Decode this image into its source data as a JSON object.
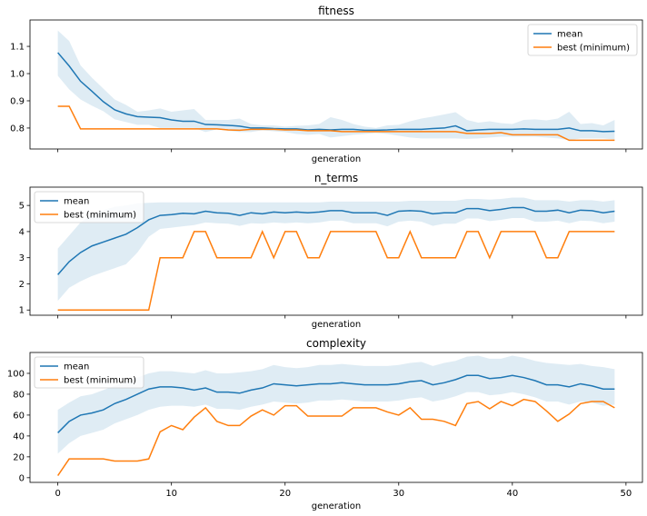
{
  "chart_data": [
    {
      "type": "line",
      "title": "fitness",
      "xlabel": "generation",
      "ylabel": "",
      "xlim": [
        -2.45,
        51.45
      ],
      "ylim": [
        0.723,
        1.197
      ],
      "yticks": [
        0.8,
        0.9,
        1.0,
        1.1
      ],
      "ytick_labels": [
        "0.8",
        "0.9",
        "1.0",
        "1.1"
      ],
      "xticks": [
        0,
        10,
        20,
        30,
        40,
        50
      ],
      "show_xtick_labels": false,
      "legend": "upper right",
      "series": [
        {
          "name": "mean",
          "color": "#1f77b4",
          "x": [
            0,
            1,
            2,
            3,
            4,
            5,
            6,
            7,
            8,
            9,
            10,
            11,
            12,
            13,
            14,
            15,
            16,
            17,
            18,
            19,
            20,
            21,
            22,
            23,
            24,
            25,
            26,
            27,
            28,
            29,
            30,
            31,
            32,
            33,
            34,
            35,
            36,
            37,
            38,
            39,
            40,
            41,
            42,
            43,
            44,
            45,
            46,
            47,
            48,
            49
          ],
          "y": [
            1.077,
            1.028,
            0.972,
            0.935,
            0.897,
            0.867,
            0.852,
            0.842,
            0.84,
            0.838,
            0.83,
            0.825,
            0.825,
            0.813,
            0.812,
            0.81,
            0.807,
            0.8,
            0.8,
            0.798,
            0.797,
            0.797,
            0.793,
            0.795,
            0.793,
            0.795,
            0.795,
            0.792,
            0.792,
            0.793,
            0.795,
            0.795,
            0.795,
            0.798,
            0.8,
            0.808,
            0.79,
            0.793,
            0.795,
            0.795,
            0.795,
            0.797,
            0.795,
            0.795,
            0.795,
            0.8,
            0.79,
            0.79,
            0.787,
            0.788
          ],
          "band_upper": [
            1.158,
            1.12,
            1.03,
            0.985,
            0.945,
            0.905,
            0.885,
            0.86,
            0.865,
            0.872,
            0.86,
            0.865,
            0.87,
            0.83,
            0.83,
            0.83,
            0.835,
            0.815,
            0.81,
            0.81,
            0.805,
            0.808,
            0.81,
            0.815,
            0.84,
            0.83,
            0.815,
            0.805,
            0.8,
            0.81,
            0.812,
            0.825,
            0.835,
            0.842,
            0.85,
            0.858,
            0.83,
            0.82,
            0.825,
            0.818,
            0.815,
            0.83,
            0.832,
            0.828,
            0.835,
            0.86,
            0.815,
            0.818,
            0.81,
            0.83
          ],
          "band_lower": [
            0.992,
            0.942,
            0.905,
            0.882,
            0.862,
            0.832,
            0.822,
            0.812,
            0.812,
            0.8,
            0.8,
            0.8,
            0.8,
            0.785,
            0.795,
            0.79,
            0.785,
            0.785,
            0.792,
            0.788,
            0.785,
            0.778,
            0.775,
            0.778,
            0.765,
            0.77,
            0.775,
            0.778,
            0.782,
            0.778,
            0.772,
            0.765,
            0.762,
            0.762,
            0.762,
            0.762,
            0.76,
            0.762,
            0.765,
            0.768,
            0.768,
            0.768,
            0.768,
            0.765,
            0.762,
            0.755,
            0.762,
            0.762,
            0.762,
            0.758
          ]
        },
        {
          "name": "best (minimum)",
          "color": "#ff7f0e",
          "x": [
            0,
            1,
            2,
            3,
            4,
            5,
            6,
            7,
            8,
            9,
            10,
            11,
            12,
            13,
            14,
            15,
            16,
            17,
            18,
            19,
            20,
            21,
            22,
            23,
            24,
            25,
            26,
            27,
            28,
            29,
            30,
            31,
            32,
            33,
            34,
            35,
            36,
            37,
            38,
            39,
            40,
            41,
            42,
            43,
            44,
            45,
            46,
            47,
            48,
            49
          ],
          "y": [
            0.88,
            0.88,
            0.797,
            0.797,
            0.797,
            0.797,
            0.797,
            0.797,
            0.797,
            0.797,
            0.797,
            0.797,
            0.797,
            0.797,
            0.797,
            0.793,
            0.792,
            0.795,
            0.795,
            0.795,
            0.793,
            0.793,
            0.79,
            0.79,
            0.79,
            0.787,
            0.787,
            0.787,
            0.787,
            0.787,
            0.787,
            0.787,
            0.787,
            0.787,
            0.787,
            0.787,
            0.78,
            0.78,
            0.78,
            0.783,
            0.775,
            0.775,
            0.775,
            0.775,
            0.775,
            0.755,
            0.755,
            0.755,
            0.755,
            0.755
          ]
        }
      ]
    },
    {
      "type": "line",
      "title": "n_terms",
      "xlabel": "generation",
      "ylabel": "",
      "xlim": [
        -2.45,
        51.45
      ],
      "ylim": [
        0.8,
        5.7
      ],
      "yticks": [
        1,
        2,
        3,
        4,
        5
      ],
      "ytick_labels": [
        "1",
        "2",
        "3",
        "4",
        "5"
      ],
      "xticks": [
        0,
        10,
        20,
        30,
        40,
        50
      ],
      "show_xtick_labels": false,
      "legend": "upper left",
      "series": [
        {
          "name": "mean",
          "color": "#1f77b4",
          "x": [
            0,
            1,
            2,
            3,
            4,
            5,
            6,
            7,
            8,
            9,
            10,
            11,
            12,
            13,
            14,
            15,
            16,
            17,
            18,
            19,
            20,
            21,
            22,
            23,
            24,
            25,
            26,
            27,
            28,
            29,
            30,
            31,
            32,
            33,
            34,
            35,
            36,
            37,
            38,
            39,
            40,
            41,
            42,
            43,
            44,
            45,
            46,
            47,
            48,
            49
          ],
          "y": [
            2.35,
            2.85,
            3.2,
            3.45,
            3.6,
            3.75,
            3.9,
            4.15,
            4.45,
            4.62,
            4.65,
            4.7,
            4.68,
            4.78,
            4.72,
            4.7,
            4.62,
            4.72,
            4.68,
            4.75,
            4.72,
            4.75,
            4.72,
            4.75,
            4.8,
            4.8,
            4.72,
            4.72,
            4.72,
            4.62,
            4.78,
            4.8,
            4.78,
            4.68,
            4.72,
            4.72,
            4.88,
            4.88,
            4.8,
            4.85,
            4.92,
            4.92,
            4.78,
            4.78,
            4.82,
            4.72,
            4.82,
            4.8,
            4.72,
            4.78
          ],
          "band_upper": [
            3.35,
            3.85,
            4.35,
            4.65,
            4.82,
            4.95,
            5.0,
            5.08,
            5.1,
            5.12,
            5.12,
            5.12,
            5.12,
            5.12,
            5.12,
            5.12,
            5.12,
            5.12,
            5.12,
            5.12,
            5.12,
            5.12,
            5.12,
            5.12,
            5.15,
            5.15,
            5.15,
            5.15,
            5.15,
            5.15,
            5.15,
            5.18,
            5.18,
            5.18,
            5.18,
            5.18,
            5.25,
            5.25,
            5.22,
            5.25,
            5.3,
            5.3,
            5.2,
            5.2,
            5.2,
            5.15,
            5.2,
            5.2,
            5.15,
            5.2
          ],
          "band_lower": [
            1.35,
            1.85,
            2.1,
            2.3,
            2.45,
            2.6,
            2.75,
            3.2,
            3.8,
            4.1,
            4.15,
            4.2,
            4.25,
            4.35,
            4.32,
            4.3,
            4.22,
            4.32,
            4.3,
            4.35,
            4.32,
            4.35,
            4.32,
            4.35,
            4.42,
            4.42,
            4.32,
            4.32,
            4.32,
            4.2,
            4.38,
            4.42,
            4.38,
            4.22,
            4.3,
            4.3,
            4.5,
            4.5,
            4.4,
            4.45,
            4.52,
            4.52,
            4.38,
            4.38,
            4.42,
            4.32,
            4.42,
            4.4,
            4.32,
            4.38
          ]
        },
        {
          "name": "best (minimum)",
          "color": "#ff7f0e",
          "x": [
            0,
            1,
            2,
            3,
            4,
            5,
            6,
            7,
            8,
            9,
            10,
            11,
            12,
            13,
            14,
            15,
            16,
            17,
            18,
            19,
            20,
            21,
            22,
            23,
            24,
            25,
            26,
            27,
            28,
            29,
            30,
            31,
            32,
            33,
            34,
            35,
            36,
            37,
            38,
            39,
            40,
            41,
            42,
            43,
            44,
            45,
            46,
            47,
            48,
            49
          ],
          "y": [
            1,
            1,
            1,
            1,
            1,
            1,
            1,
            1,
            1,
            3,
            3,
            3,
            4,
            4,
            3,
            3,
            3,
            3,
            4,
            3,
            4,
            4,
            3,
            3,
            4,
            4,
            4,
            4,
            4,
            3,
            3,
            4,
            3,
            3,
            3,
            3,
            4,
            4,
            3,
            4,
            4,
            4,
            4,
            3,
            3,
            4,
            4,
            4,
            4,
            4
          ]
        }
      ]
    },
    {
      "type": "line",
      "title": "complexity",
      "xlabel": "generation",
      "ylabel": "",
      "xlim": [
        -2.45,
        51.45
      ],
      "ylim": [
        -4.5,
        120
      ],
      "yticks": [
        0,
        20,
        40,
        60,
        80,
        100
      ],
      "ytick_labels": [
        "0",
        "20",
        "40",
        "60",
        "80",
        "100"
      ],
      "xticks": [
        0,
        10,
        20,
        30,
        40,
        50
      ],
      "xtick_labels": [
        "0",
        "10",
        "20",
        "30",
        "40",
        "50"
      ],
      "show_xtick_labels": true,
      "legend": "upper left",
      "series": [
        {
          "name": "mean",
          "color": "#1f77b4",
          "x": [
            0,
            1,
            2,
            3,
            4,
            5,
            6,
            7,
            8,
            9,
            10,
            11,
            12,
            13,
            14,
            15,
            16,
            17,
            18,
            19,
            20,
            21,
            22,
            23,
            24,
            25,
            26,
            27,
            28,
            29,
            30,
            31,
            32,
            33,
            34,
            35,
            36,
            37,
            38,
            39,
            40,
            41,
            42,
            43,
            44,
            45,
            46,
            47,
            48,
            49
          ],
          "y": [
            43,
            54,
            60,
            62,
            65,
            71,
            75,
            80,
            85,
            87,
            87,
            86,
            84,
            86,
            82,
            82,
            81,
            84,
            86,
            90,
            89,
            88,
            89,
            90,
            90,
            91,
            90,
            89,
            89,
            89,
            90,
            92,
            93,
            89,
            91,
            94,
            98,
            98,
            95,
            96,
            98,
            96,
            93,
            89,
            89,
            87,
            90,
            88,
            85,
            85
          ],
          "band_upper": [
            65,
            72,
            78,
            80,
            84,
            88,
            92,
            96,
            100,
            102,
            102,
            101,
            100,
            103,
            100,
            100,
            101,
            102,
            104,
            108,
            106,
            105,
            106,
            108,
            108,
            109,
            108,
            107,
            107,
            107,
            108,
            110,
            111,
            107,
            110,
            112,
            116,
            117,
            114,
            114,
            117,
            115,
            112,
            110,
            109,
            108,
            109,
            107,
            106,
            104
          ],
          "band_lower": [
            23,
            33,
            40,
            43,
            46,
            52,
            56,
            60,
            65,
            68,
            69,
            69,
            68,
            70,
            66,
            66,
            65,
            68,
            70,
            73,
            72,
            71,
            72,
            74,
            74,
            75,
            74,
            73,
            73,
            73,
            74,
            76,
            77,
            73,
            75,
            78,
            82,
            82,
            79,
            80,
            82,
            80,
            77,
            73,
            73,
            70,
            73,
            72,
            69,
            70
          ]
        },
        {
          "name": "best (minimum)",
          "color": "#ff7f0e",
          "x": [
            0,
            1,
            2,
            3,
            4,
            5,
            6,
            7,
            8,
            9,
            10,
            11,
            12,
            13,
            14,
            15,
            16,
            17,
            18,
            19,
            20,
            21,
            22,
            23,
            24,
            25,
            26,
            27,
            28,
            29,
            30,
            31,
            32,
            33,
            34,
            35,
            36,
            37,
            38,
            39,
            40,
            41,
            42,
            43,
            44,
            45,
            46,
            47,
            48,
            49
          ],
          "y": [
            2,
            18,
            18,
            18,
            18,
            16,
            16,
            16,
            18,
            44,
            50,
            46,
            58,
            67,
            54,
            50,
            50,
            59,
            65,
            60,
            69,
            69,
            59,
            59,
            59,
            59,
            67,
            67,
            67,
            63,
            60,
            67,
            56,
            56,
            54,
            50,
            71,
            73,
            66,
            73,
            69,
            75,
            73,
            64,
            54,
            61,
            71,
            73,
            73,
            67
          ]
        }
      ]
    }
  ]
}
